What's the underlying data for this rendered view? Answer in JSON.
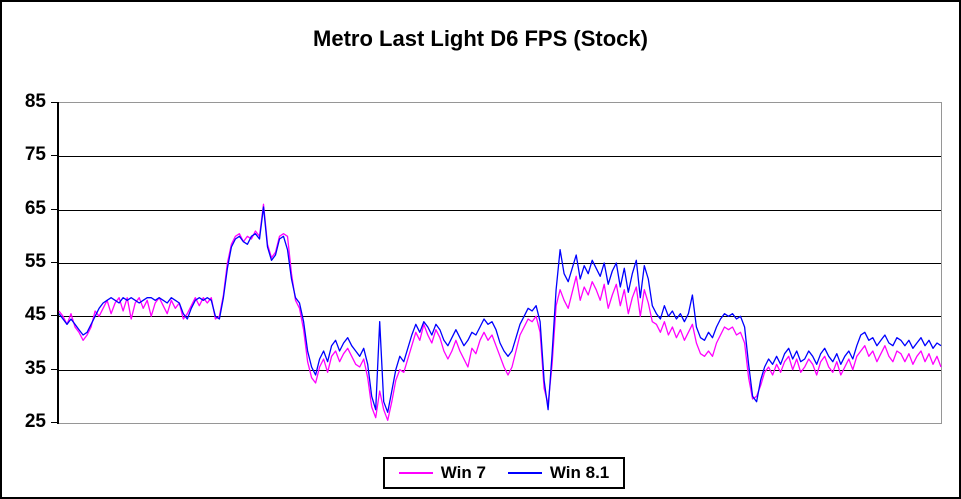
{
  "colors": {
    "background": "#FFFFFF",
    "outer_border": "#000000",
    "axis": "#000000",
    "gridline": "#000000",
    "plot_border": "#969696",
    "win7": "#FF00FF",
    "win81": "#0000FF"
  },
  "chart_data": {
    "type": "line",
    "title": "Metro Last Light D6 FPS (Stock)",
    "xlabel": "",
    "ylabel": "",
    "ylim": [
      25,
      85
    ],
    "yticks": [
      85,
      75,
      65,
      55,
      45,
      35,
      25
    ],
    "x_axis_labels": "none (frame/time samples)",
    "grid": "horizontal-major",
    "legend_position": "bottom-center",
    "series": [
      {
        "name": "Win 7",
        "color": "#FF00FF",
        "values": [
          46,
          45,
          43.5,
          45.5,
          43,
          42,
          40.5,
          41.5,
          43,
          46,
          45,
          46.5,
          48,
          45.5,
          47.5,
          48.5,
          46,
          48.5,
          44.5,
          47.5,
          48.5,
          46.5,
          48,
          45,
          47.5,
          48.5,
          47,
          45.5,
          48,
          46.5,
          47.5,
          44.5,
          45.5,
          47,
          48.5,
          47,
          48.5,
          47.5,
          48.5,
          44.5,
          45,
          49,
          55,
          58.5,
          60,
          60.5,
          59,
          60,
          59.5,
          61,
          60,
          66,
          58.5,
          56,
          57,
          60,
          60.5,
          60,
          53,
          48,
          46.5,
          42.5,
          36.5,
          33.5,
          32.5,
          35.5,
          37,
          34.5,
          37.5,
          38.5,
          36.5,
          38,
          39,
          37.5,
          36,
          35.5,
          37,
          33.5,
          28,
          26,
          31,
          27.5,
          25.5,
          29,
          33,
          35,
          34.5,
          37,
          39.5,
          42,
          40.5,
          43.5,
          41.5,
          40,
          42.5,
          41,
          38.5,
          37,
          38.5,
          40.5,
          38.5,
          37,
          35.5,
          39,
          38,
          40.5,
          42,
          40.5,
          41.5,
          39.5,
          37.5,
          35.5,
          34,
          35.5,
          38.5,
          41.5,
          43,
          44.5,
          44,
          45,
          42,
          31.5,
          28.5,
          36,
          47,
          50,
          48,
          46.5,
          49.5,
          52.5,
          48,
          50.5,
          49,
          51.5,
          50,
          48,
          51,
          46.5,
          49,
          51,
          47,
          50,
          45.5,
          48.5,
          50.5,
          45,
          50,
          47.5,
          44,
          43.5,
          42,
          44,
          41.5,
          43,
          41,
          42.5,
          40.5,
          42,
          43.5,
          40,
          38,
          37.5,
          38.5,
          37.5,
          40,
          41.5,
          43,
          42.5,
          43,
          41.5,
          42,
          40,
          33.5,
          29.5,
          30,
          32,
          34.5,
          35.5,
          34,
          36,
          34.5,
          36.5,
          37.5,
          35,
          37,
          34.5,
          35.5,
          37,
          36,
          34,
          36.5,
          37.5,
          35.5,
          34.5,
          36.5,
          34,
          35.5,
          37,
          35,
          37.5,
          38.5,
          39.5,
          37.5,
          38.5,
          36.5,
          38,
          39.5,
          37.5,
          36.5,
          38.5,
          38,
          36.5,
          38,
          36,
          37.5,
          38.5,
          36.5,
          38,
          36,
          37.5,
          35.5
        ]
      },
      {
        "name": "Win 8.1",
        "color": "#0000FF",
        "values": [
          45.5,
          44.5,
          43.5,
          44.5,
          43.5,
          42.5,
          41.5,
          42,
          43.5,
          45,
          46.5,
          47.5,
          48,
          48.5,
          48,
          47.5,
          48.5,
          48,
          48.5,
          48,
          47.5,
          48,
          48.5,
          48.5,
          48,
          48.5,
          48,
          47.5,
          48.5,
          48,
          47.5,
          45.5,
          44.5,
          46.5,
          48,
          48.5,
          48,
          48.5,
          48,
          45,
          44.5,
          48.5,
          54,
          58,
          59.5,
          60,
          59,
          58.5,
          60,
          60.5,
          59.5,
          65.5,
          58,
          55.5,
          56.5,
          59.5,
          60,
          57.5,
          52,
          48.5,
          47.5,
          44,
          38.5,
          35.5,
          34,
          37,
          38.5,
          36.5,
          39.5,
          40.5,
          38.5,
          40,
          41,
          39.5,
          38.5,
          37.5,
          39,
          36,
          30,
          27.5,
          44,
          29,
          27,
          31,
          35,
          37.5,
          36.5,
          39,
          41.5,
          43.5,
          42,
          44,
          43,
          41.5,
          43.5,
          42.5,
          40.5,
          39.5,
          41,
          42.5,
          41,
          39.5,
          40.5,
          42,
          41.5,
          43,
          44.5,
          43.5,
          44,
          42.5,
          40,
          38.5,
          37.5,
          38.5,
          41,
          43.5,
          45,
          46.5,
          46,
          47,
          44,
          33,
          27.5,
          38,
          50,
          57.5,
          53,
          51.5,
          54,
          56.5,
          52,
          54.5,
          53,
          55.5,
          54,
          52.5,
          55,
          51,
          53.5,
          55,
          50.5,
          54,
          49.5,
          53,
          55.5,
          48.5,
          54.5,
          52,
          47,
          45.5,
          44.5,
          47,
          45,
          46,
          44.5,
          45.5,
          44,
          45.5,
          49,
          43,
          41,
          40.5,
          42,
          41,
          43,
          44.5,
          45.5,
          45,
          45.5,
          44.5,
          45,
          43,
          36,
          30,
          29,
          33,
          35.5,
          37,
          36,
          37.5,
          36,
          38,
          39,
          37,
          38.5,
          36.5,
          37,
          38.5,
          37.5,
          36,
          38,
          39,
          37.5,
          36.5,
          38,
          36,
          37.5,
          38.5,
          37,
          39.5,
          41.5,
          42,
          40.5,
          41,
          39.5,
          40.5,
          41.5,
          40,
          39.5,
          41,
          40.5,
          39.5,
          40.5,
          39,
          40,
          41,
          39.5,
          40.5,
          39,
          40,
          39.5
        ]
      }
    ]
  }
}
